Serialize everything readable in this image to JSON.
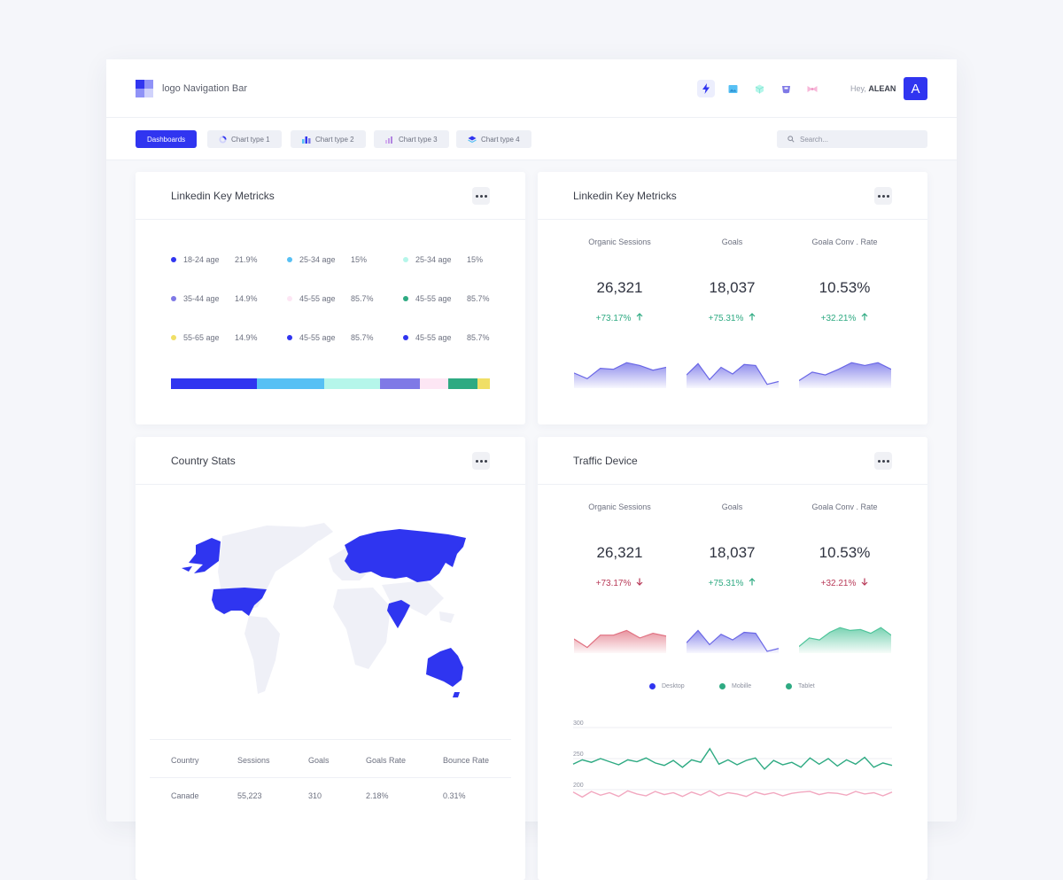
{
  "header": {
    "brand": "logo Navigation Bar",
    "greeting": "Hey,",
    "user": "ALEAN",
    "avatar_letter": "A",
    "icons": [
      "bolt-icon",
      "image-icon",
      "cube-icon",
      "bag-icon",
      "bow-icon"
    ]
  },
  "toolbar": {
    "tabs": [
      {
        "label": "Dashboards",
        "icon": ""
      },
      {
        "label": "Chart type 1",
        "icon": "donut-icon"
      },
      {
        "label": "Chart type 2",
        "icon": "bar-chart-icon"
      },
      {
        "label": "Chart type 3",
        "icon": "column-chart-icon"
      },
      {
        "label": "Chart type 4",
        "icon": "layers-icon"
      }
    ],
    "search_placeholder": "Search..."
  },
  "colors": {
    "accent": "#3035f0",
    "up": "#2eaa82",
    "down": "#b83a58"
  },
  "linkedin_age": {
    "title": "Linkedin Key Metricks",
    "items": [
      {
        "label": "18-24 age",
        "pct": "21.9%",
        "color": "#3035f0"
      },
      {
        "label": "25-34 age",
        "pct": "15%",
        "color": "#57c0f4"
      },
      {
        "label": "25-34 age",
        "pct": "15%",
        "color": "#b5f6ea"
      },
      {
        "label": "35-44 age",
        "pct": "14.9%",
        "color": "#7f79e6"
      },
      {
        "label": "45-55 age",
        "pct": "85.7%",
        "color": "#fde6f4"
      },
      {
        "label": "45-55 age",
        "pct": "85.7%",
        "color": "#2eaa82"
      },
      {
        "label": "55-65 age",
        "pct": "14.9%",
        "color": "#f0df66"
      },
      {
        "label": "45-55 age",
        "pct": "85.7%",
        "color": "#3035f0"
      },
      {
        "label": "45-55 age",
        "pct": "85.7%",
        "color": "#3035f0"
      }
    ],
    "bar_segments": [
      {
        "color": "#3035f0",
        "share": 27
      },
      {
        "color": "#57c0f4",
        "share": 21
      },
      {
        "color": "#b5f6ea",
        "share": 17.5
      },
      {
        "color": "#7f79e6",
        "share": 12.5
      },
      {
        "color": "#fde6f4",
        "share": 9
      },
      {
        "color": "#2eaa82",
        "share": 9
      },
      {
        "color": "#f0df66",
        "share": 4
      }
    ]
  },
  "linkedin_metrics": {
    "title": "Linkedin Key Metricks",
    "metrics": [
      {
        "label": "Organic Sessions",
        "value": "26,321",
        "change": "+73.17%",
        "dir": "up",
        "color": "#6a67e6",
        "spark": [
          16,
          10,
          21,
          20,
          27,
          24,
          19,
          22
        ]
      },
      {
        "label": "Goals",
        "value": "18,037",
        "change": "+75.31%",
        "dir": "up",
        "color": "#6a67e6",
        "spark": [
          14,
          26,
          9,
          22,
          15,
          25,
          24,
          4,
          7
        ]
      },
      {
        "label": "Goala Conv . Rate",
        "value": "10.53%",
        "change": "+32.21%",
        "dir": "up",
        "color": "#6a67e6",
        "spark": [
          8,
          17,
          14,
          20,
          27,
          24,
          27,
          20
        ]
      }
    ]
  },
  "country": {
    "title": "Country Stats",
    "columns": [
      "Country",
      "Sessions",
      "Goals",
      "Goals Rate",
      "Bounce Rate"
    ],
    "rows": [
      [
        "Canade",
        "55,223",
        "310",
        "2.18%",
        "0.31%"
      ]
    ]
  },
  "traffic": {
    "title": "Traffic Device",
    "metrics": [
      {
        "label": "Organic Sessions",
        "value": "26,321",
        "change": "+73.17%",
        "dir": "down",
        "color": "#e07080",
        "spark": [
          15,
          6,
          19,
          19,
          24,
          16,
          21,
          18
        ]
      },
      {
        "label": "Goals",
        "value": "18,037",
        "change": "+75.31%",
        "dir": "up",
        "color": "#6a67e6",
        "spark": [
          11,
          24,
          9,
          20,
          14,
          22,
          21,
          2,
          5
        ]
      },
      {
        "label": "Goala Conv . Rate",
        "value": "10.53%",
        "change": "+32.21%",
        "dir": "down",
        "color": "#4ec49a",
        "spark": [
          7,
          16,
          14,
          22,
          27,
          24,
          25,
          21,
          27,
          19
        ]
      }
    ],
    "legend": [
      {
        "label": "Desktop",
        "color": "#3035f0"
      },
      {
        "label": "Mobille",
        "color": "#2eaa82"
      },
      {
        "label": "Tablet",
        "color": "#2eaa82"
      }
    ]
  },
  "chart_data": {
    "type": "line",
    "title": "",
    "xlabel": "",
    "ylabel": "",
    "y_ticks": [
      "300",
      "250",
      "200"
    ],
    "ylim": [
      200,
      300
    ],
    "series": [
      {
        "color": "#2eaa82",
        "values": [
          241,
          248,
          244,
          250,
          245,
          240,
          248,
          245,
          251,
          243,
          239,
          247,
          236,
          248,
          244,
          266,
          241,
          248,
          240,
          247,
          251,
          233,
          247,
          240,
          244,
          236,
          251,
          241,
          250,
          238,
          248,
          241,
          252,
          236,
          243,
          239
        ]
      },
      {
        "color": "#f2a8c0",
        "values": [
          196,
          188,
          197,
          191,
          195,
          189,
          198,
          193,
          190,
          197,
          192,
          195,
          189,
          196,
          191,
          198,
          190,
          195,
          193,
          189,
          196,
          192,
          195,
          190,
          194,
          196,
          197,
          192,
          195,
          194,
          191,
          197,
          193,
          195,
          190,
          196
        ]
      }
    ]
  }
}
